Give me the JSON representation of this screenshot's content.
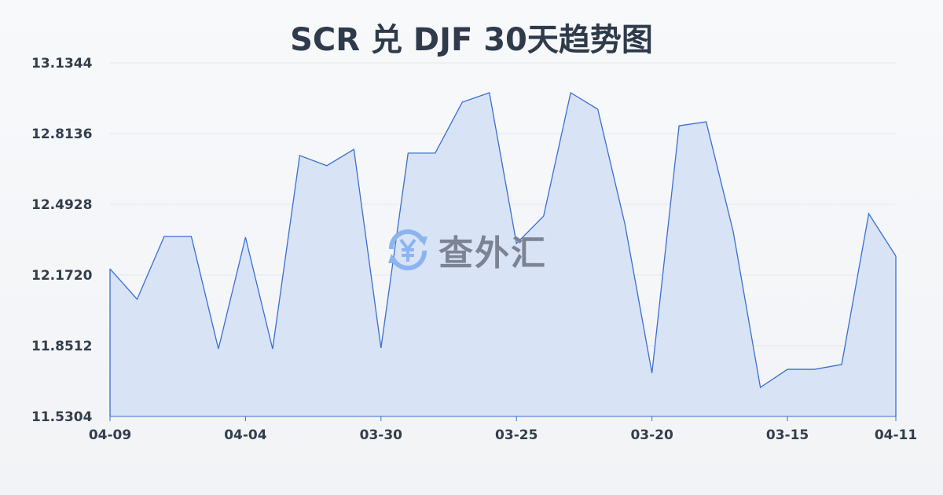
{
  "title": "SCR 兑 DJF 30天趋势图",
  "watermark": "查外汇",
  "chart_data": {
    "type": "area",
    "title": "SCR 兑 DJF 30天趋势图",
    "x_tick_labels": [
      "04-09",
      "04-04",
      "03-30",
      "03-25",
      "03-20",
      "03-15",
      "04-11"
    ],
    "y_ticks": [
      "13.1344",
      "12.8136",
      "12.4928",
      "12.1720",
      "11.8512",
      "11.5304"
    ],
    "ylim": [
      11.5304,
      13.1344
    ],
    "grid": true,
    "line_color": "#3a6fd0",
    "fill_color": "#d6e2f6",
    "values": [
      12.2,
      12.062,
      12.347,
      12.347,
      11.837,
      12.343,
      11.837,
      12.714,
      12.668,
      12.742,
      11.841,
      12.725,
      12.725,
      12.956,
      12.999,
      12.315,
      12.439,
      12.999,
      12.924,
      12.404,
      11.727,
      12.849,
      12.867,
      12.368,
      11.662,
      11.744,
      11.744,
      11.766,
      12.45,
      12.258
    ]
  }
}
